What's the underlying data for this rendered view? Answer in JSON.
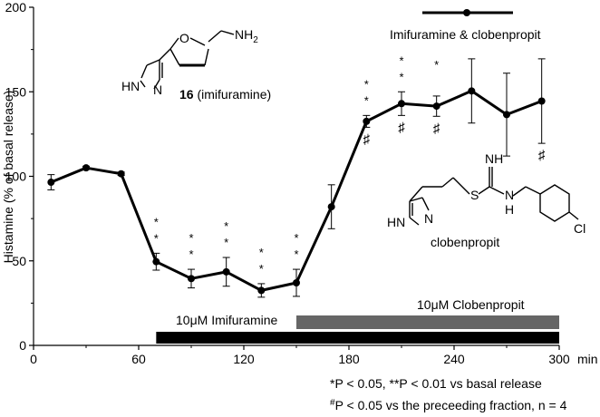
{
  "chart_data": {
    "type": "line",
    "xlim": [
      0,
      300
    ],
    "ylim": [
      0,
      200
    ],
    "x_ticks": [
      0,
      60,
      120,
      180,
      240,
      300
    ],
    "y_ticks": [
      0,
      50,
      100,
      150,
      200
    ],
    "x_unit": "min",
    "ylabel": "Histamine (% of basal release)",
    "grid": false,
    "series": [
      {
        "name": "Imifuramine & clobenpropit",
        "x": [
          10,
          30,
          50,
          70,
          90,
          110,
          130,
          150,
          170,
          190,
          210,
          230,
          250,
          270,
          290
        ],
        "y": [
          96.5,
          105,
          101.5,
          49.5,
          39.5,
          43.5,
          32.5,
          37,
          82,
          132.5,
          143,
          141.5,
          150.5,
          136.5,
          144.5
        ],
        "err": [
          4.5,
          1,
          1,
          5,
          5.5,
          8.5,
          4,
          8,
          13,
          3.5,
          7,
          6,
          19,
          24.5,
          25
        ],
        "color": "#000000"
      }
    ],
    "legend": {
      "label": "Imifuramine & clobenpropit",
      "placement": "top-right"
    },
    "annotations": {
      "single_significance": [
        {
          "x": 70,
          "label": "*"
        },
        {
          "x": 90,
          "label": "*"
        },
        {
          "x": 110,
          "label": "*"
        },
        {
          "x": 130,
          "label": "*"
        },
        {
          "x": 150,
          "label": "*"
        },
        {
          "x": 190,
          "label": "*"
        },
        {
          "x": 210,
          "label": "*"
        },
        {
          "x": 230,
          "label": "*"
        }
      ],
      "double_significance": [
        {
          "x": 70,
          "label": "*"
        },
        {
          "x": 90,
          "label": "*"
        },
        {
          "x": 110,
          "label": "*"
        },
        {
          "x": 130,
          "label": "*"
        },
        {
          "x": 150,
          "label": "*"
        },
        {
          "x": 190,
          "label": "*"
        },
        {
          "x": 210,
          "label": "*"
        }
      ],
      "hash_marks": [
        {
          "x": 190,
          "label": "♯"
        },
        {
          "x": 210,
          "label": "♯"
        },
        {
          "x": 230,
          "label": "♯"
        },
        {
          "x": 290,
          "label": "♯"
        }
      ]
    },
    "treatment_bars": [
      {
        "label": "10μM Imifuramine",
        "x_start": 70,
        "x_end": 300,
        "color": "#000000"
      },
      {
        "label": "10μM Clobenpropit",
        "x_start": 150,
        "x_end": 300,
        "color": "#666666"
      }
    ]
  },
  "structures": {
    "imifuramine": {
      "amine_label": "NH",
      "amine_subscript": "2",
      "oxygen_label": "O",
      "ring_n_label": "N",
      "ring_nh_label": "HN",
      "compound_number": "16",
      "compound_name": "(imifuramine)"
    },
    "clobenpropit": {
      "imine_label": "NH",
      "amine_label": "H",
      "amine_n_label": "N",
      "sulfur_label": "S",
      "ring_n_label": "N",
      "ring_nh_label": "HN",
      "chloro_label": "Cl",
      "name": "clobenpropit"
    }
  },
  "footnotes": {
    "line1": "*P < 0.05, **P < 0.01 vs basal release",
    "line2_sup": "#",
    "line2": "P < 0.05 vs the preceeding fraction, n = 4"
  }
}
